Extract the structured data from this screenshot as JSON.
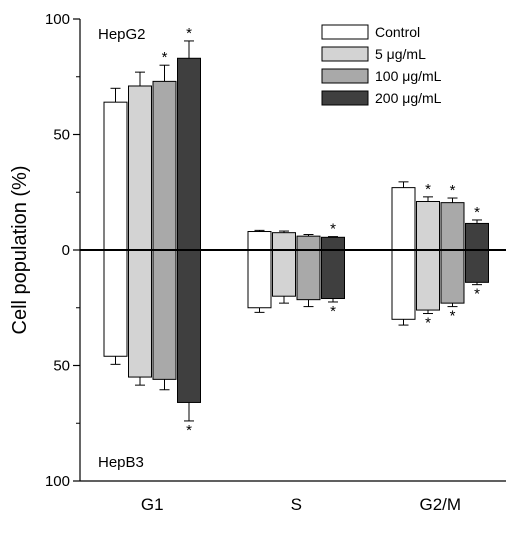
{
  "chart_data": {
    "type": "bar",
    "ylabel": "Cell population (%)",
    "categories": [
      "G1",
      "S",
      "G2/M"
    ],
    "yticks_labels": [
      "100",
      "50",
      "0",
      "50",
      "100"
    ],
    "ylim_top": [
      0,
      100
    ],
    "ylim_bottom": [
      0,
      100
    ],
    "top_panel_label": "HepG2",
    "bottom_panel_label": "HepB3",
    "significance_marker": "*",
    "legend_position": "top-right",
    "series": [
      {
        "name": "Control",
        "color": "#ffffff",
        "top_values": [
          64,
          8,
          27
        ],
        "top_errors": [
          6,
          0.5,
          2.5
        ],
        "top_sig": [
          false,
          false,
          false
        ],
        "bottom_values": [
          46,
          25,
          30
        ],
        "bottom_errors": [
          3.5,
          2,
          2.5
        ],
        "bottom_sig": [
          false,
          false,
          false
        ]
      },
      {
        "name": "5 μg/mL",
        "color": "#d3d3d3",
        "top_values": [
          71,
          7.5,
          21
        ],
        "top_errors": [
          6,
          0.7,
          2
        ],
        "top_sig": [
          false,
          false,
          true
        ],
        "bottom_values": [
          55,
          20,
          26
        ],
        "bottom_errors": [
          3.5,
          3,
          1.5
        ],
        "bottom_sig": [
          false,
          false,
          true
        ]
      },
      {
        "name": "100 μg/mL",
        "color": "#a9a9a9",
        "top_values": [
          73,
          6,
          20.5
        ],
        "top_errors": [
          7,
          0.7,
          2
        ],
        "top_sig": [
          true,
          false,
          true
        ],
        "bottom_values": [
          56,
          21.5,
          23
        ],
        "bottom_errors": [
          4.5,
          3,
          1.5
        ],
        "bottom_sig": [
          false,
          false,
          true
        ]
      },
      {
        "name": "200 μg/mL",
        "color": "#3f3f3f",
        "top_values": [
          83,
          5.5,
          11.5
        ],
        "top_errors": [
          7.5,
          0.3,
          1.5
        ],
        "top_sig": [
          true,
          true,
          true
        ],
        "bottom_values": [
          66,
          21,
          14
        ],
        "bottom_errors": [
          8,
          1.5,
          1
        ],
        "bottom_sig": [
          true,
          true,
          true
        ]
      }
    ]
  }
}
